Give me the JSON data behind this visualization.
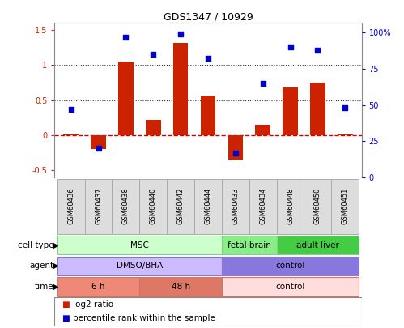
{
  "title": "GDS1347 / 10929",
  "samples": [
    "GSM60436",
    "GSM60437",
    "GSM60438",
    "GSM60440",
    "GSM60442",
    "GSM60444",
    "GSM60433",
    "GSM60434",
    "GSM60448",
    "GSM60450",
    "GSM60451"
  ],
  "log2_ratio": [
    0.01,
    -0.2,
    1.05,
    0.22,
    1.32,
    0.57,
    -0.35,
    0.15,
    0.68,
    0.75,
    0.01
  ],
  "percentile_rank": [
    47,
    20,
    97,
    85,
    99,
    82,
    17,
    65,
    90,
    88,
    48
  ],
  "ylim_left": [
    -0.6,
    1.6
  ],
  "ylim_right": [
    0,
    106.67
  ],
  "bar_color": "#cc2200",
  "scatter_color": "#0000cc",
  "zeroline_color": "#cc0000",
  "hline_color": "#333333",
  "cell_type_groups": [
    {
      "label": "MSC",
      "start": 0,
      "end": 6,
      "color": "#ccffcc",
      "border": "#88cc88"
    },
    {
      "label": "fetal brain",
      "start": 6,
      "end": 8,
      "color": "#88ee88",
      "border": "#88cc88"
    },
    {
      "label": "adult liver",
      "start": 8,
      "end": 11,
      "color": "#44cc44",
      "border": "#88cc88"
    }
  ],
  "agent_groups": [
    {
      "label": "DMSO/BHA",
      "start": 0,
      "end": 6,
      "color": "#ccbbff",
      "border": "#8877cc"
    },
    {
      "label": "control",
      "start": 6,
      "end": 11,
      "color": "#8877dd",
      "border": "#8877cc"
    }
  ],
  "time_groups": [
    {
      "label": "6 h",
      "start": 0,
      "end": 3,
      "color": "#ee8877",
      "border": "#cc7766"
    },
    {
      "label": "48 h",
      "start": 3,
      "end": 6,
      "color": "#dd7766",
      "border": "#cc7766"
    },
    {
      "label": "control",
      "start": 6,
      "end": 11,
      "color": "#ffdddd",
      "border": "#cc7766"
    }
  ],
  "row_labels": [
    "cell type",
    "agent",
    "time"
  ],
  "legend_items": [
    {
      "color": "#cc2200",
      "label": "log2 ratio"
    },
    {
      "color": "#0000cc",
      "label": "percentile rank within the sample"
    }
  ],
  "sample_box_color": "#dddddd",
  "sample_box_border": "#aaaaaa"
}
